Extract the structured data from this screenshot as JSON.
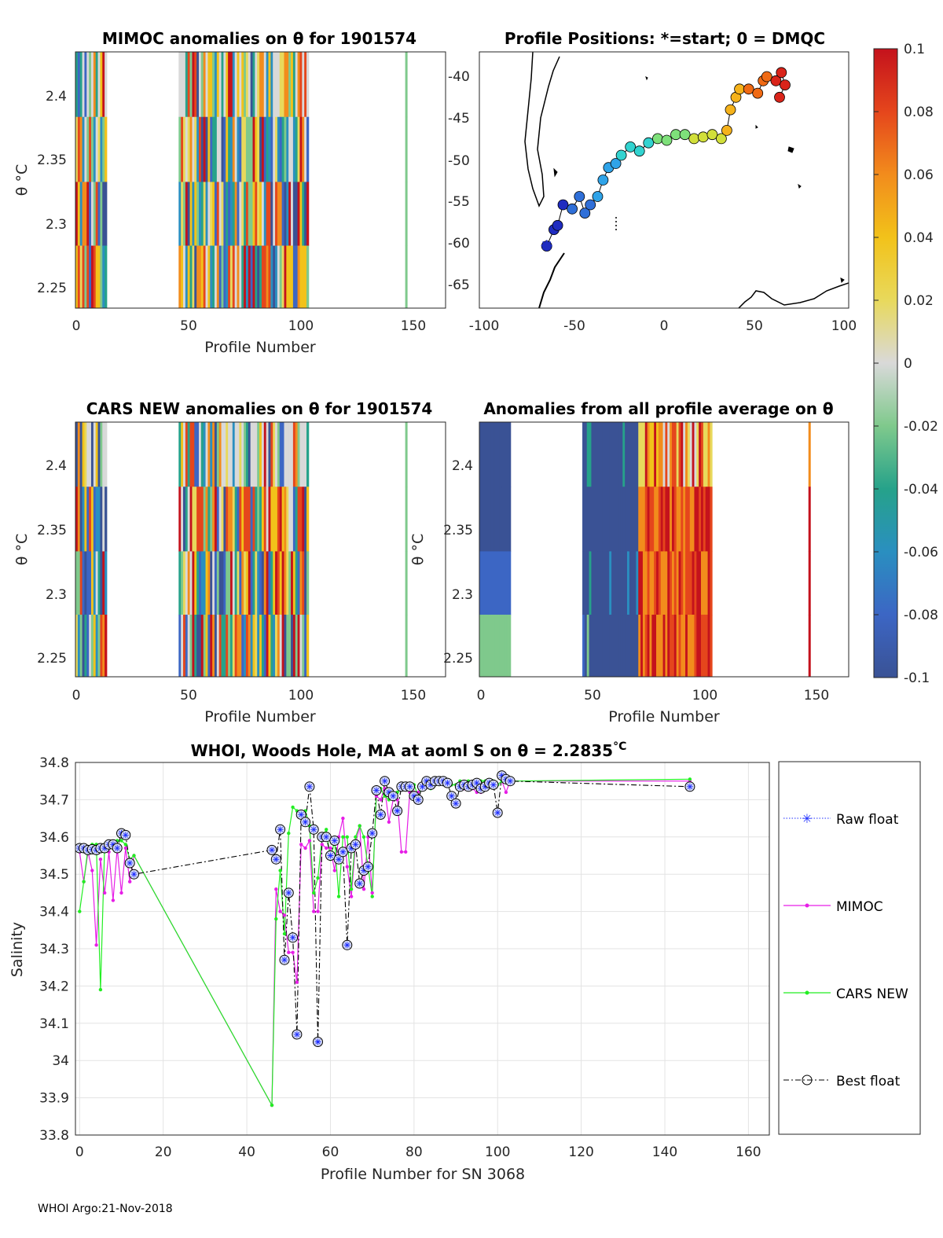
{
  "footer": "WHOI Argo:21-Nov-2018",
  "colors": {
    "map_dots": [
      "#1f2cc0",
      "#2f6fd8",
      "#2fa3e8",
      "#32d3d0",
      "#7ee07a",
      "#d2df3a",
      "#f5b21b",
      "#f06a14",
      "#d9241a"
    ],
    "raw": "#1f2fff",
    "mimoc": "#e61ee6",
    "cars": "#22ee22",
    "best": "#000000"
  },
  "colorbar": {
    "ticks": [
      "0.1",
      "0.08",
      "0.06",
      "0.04",
      "0.02",
      "0",
      "-0.02",
      "-0.04",
      "-0.06",
      "-0.08",
      "-0.1"
    ]
  },
  "chart_data": [
    {
      "type": "heatmap",
      "title": "MIMOC anomalies on θ  for 1901574",
      "xlabel": "Profile Number",
      "ylabel": "θ °C",
      "xlim": [
        0,
        165
      ],
      "ylim": [
        2.234,
        2.435
      ],
      "xticks": [
        0,
        50,
        100,
        150
      ],
      "yticks": [
        2.25,
        2.3,
        2.35,
        2.4
      ],
      "bands": [
        2.435,
        2.384,
        2.333,
        2.283,
        2.234
      ],
      "segments": [
        [
          0,
          14
        ],
        [
          46,
          104
        ],
        [
          147,
          148
        ]
      ]
    },
    {
      "type": "scatter",
      "title": "Profile Positions: *=start; 0 = DMQC",
      "xlim": [
        -103,
        100
      ],
      "ylim": [
        -68.5,
        -37.5
      ],
      "xticks": [
        -100,
        -50,
        0,
        50,
        100
      ],
      "yticks": [
        -40,
        -45,
        -50,
        -55,
        -60,
        -65
      ],
      "track": [
        [
          -66,
          -61
        ],
        [
          -62,
          -59
        ],
        [
          -60,
          -58.5
        ],
        [
          -57,
          -56
        ],
        [
          -52,
          -56.5
        ],
        [
          -48,
          -55
        ],
        [
          -45,
          -57
        ],
        [
          -42,
          -56
        ],
        [
          -38,
          -55
        ],
        [
          -35,
          -53
        ],
        [
          -32,
          -51.5
        ],
        [
          -28,
          -51
        ],
        [
          -25,
          -50
        ],
        [
          -20,
          -49
        ],
        [
          -15,
          -49.5
        ],
        [
          -10,
          -48.5
        ],
        [
          -5,
          -48
        ],
        [
          0,
          -48.2
        ],
        [
          5,
          -47.5
        ],
        [
          10,
          -47.5
        ],
        [
          15,
          -48
        ],
        [
          20,
          -47.8
        ],
        [
          25,
          -47.5
        ],
        [
          30,
          -48
        ],
        [
          33,
          -47
        ],
        [
          35,
          -44.5
        ],
        [
          38,
          -43
        ],
        [
          40,
          -42
        ],
        [
          45,
          -42
        ],
        [
          50,
          -42.5
        ],
        [
          53,
          -41
        ],
        [
          55,
          -40.5
        ],
        [
          60,
          -41
        ],
        [
          63,
          -40
        ],
        [
          65,
          -41.5
        ],
        [
          62,
          -43
        ]
      ]
    },
    {
      "type": "heatmap",
      "title": "CARS NEW anomalies on θ for 1901574",
      "xlabel": "Profile Number",
      "ylabel": "θ °C",
      "xlim": [
        0,
        165
      ],
      "ylim": [
        2.234,
        2.435
      ],
      "xticks": [
        0,
        50,
        100,
        150
      ],
      "yticks": [
        2.25,
        2.3,
        2.35,
        2.4
      ],
      "bands": [
        2.435,
        2.384,
        2.333,
        2.283,
        2.234
      ],
      "segments": [
        [
          0,
          14
        ],
        [
          46,
          104
        ],
        [
          147,
          148
        ]
      ]
    },
    {
      "type": "heatmap",
      "title": "Anomalies from all profile average on θ",
      "xlabel": "Profile Number",
      "ylabel": "θ °C",
      "xlim": [
        0,
        165
      ],
      "ylim": [
        2.234,
        2.435
      ],
      "xticks": [
        0,
        50,
        100,
        150
      ],
      "yticks": [
        2.25,
        2.3,
        2.35,
        2.4
      ],
      "bands": [
        2.435,
        2.384,
        2.333,
        2.283,
        2.234
      ],
      "segments": [
        [
          0,
          14
        ],
        [
          46,
          104
        ],
        [
          147,
          148
        ]
      ]
    },
    {
      "type": "line",
      "title": "WHOI, Woods Hole, MA at aoml S on θ = 2.2835",
      "title_unit": "°C",
      "xlabel": "Profile Number for SN 3068",
      "ylabel": "Salinity",
      "xlim": [
        -1,
        165
      ],
      "ylim": [
        33.8,
        34.8
      ],
      "xticks": [
        0,
        20,
        40,
        60,
        80,
        100,
        120,
        140,
        160
      ],
      "yticks": [
        33.8,
        33.9,
        34,
        34.1,
        34.2,
        34.3,
        34.4,
        34.5,
        34.6,
        34.7,
        34.8
      ],
      "x": [
        0,
        1,
        2,
        3,
        4,
        5,
        6,
        7,
        8,
        9,
        10,
        11,
        12,
        13,
        46,
        47,
        48,
        49,
        50,
        51,
        52,
        53,
        54,
        55,
        56,
        57,
        58,
        59,
        60,
        61,
        62,
        63,
        64,
        65,
        66,
        67,
        68,
        69,
        70,
        71,
        72,
        73,
        74,
        75,
        76,
        77,
        78,
        79,
        80,
        81,
        82,
        83,
        84,
        85,
        86,
        87,
        88,
        89,
        90,
        91,
        92,
        93,
        94,
        95,
        96,
        97,
        98,
        99,
        100,
        101,
        102,
        103,
        146
      ],
      "legend": [
        "Raw float",
        "MIMOC",
        "CARS NEW",
        "Best float"
      ],
      "series": [
        {
          "name": "Best float",
          "values": [
            34.57,
            34.57,
            34.565,
            34.567,
            34.565,
            34.57,
            34.57,
            34.58,
            34.58,
            34.57,
            34.61,
            34.605,
            34.53,
            34.5,
            34.565,
            34.54,
            34.62,
            34.27,
            34.45,
            34.33,
            34.07,
            34.66,
            34.64,
            34.735,
            34.62,
            34.05,
            34.6,
            34.6,
            34.55,
            34.59,
            34.54,
            34.56,
            34.31,
            34.57,
            34.58,
            34.475,
            34.51,
            34.52,
            34.61,
            34.725,
            34.66,
            34.75,
            34.72,
            34.71,
            34.67,
            34.735,
            34.735,
            34.735,
            34.71,
            34.7,
            34.735,
            34.75,
            34.74,
            34.75,
            34.75,
            34.75,
            34.745,
            34.71,
            34.69,
            34.735,
            34.74,
            34.735,
            34.74,
            34.745,
            34.73,
            34.735,
            34.745,
            34.74,
            34.665,
            34.765,
            34.755,
            34.75,
            34.735
          ]
        },
        {
          "name": "MIMOC",
          "values": [
            34.56,
            34.48,
            34.56,
            34.51,
            34.31,
            34.54,
            34.45,
            34.56,
            34.43,
            34.57,
            34.45,
            34.57,
            34.48,
            34.55,
            33.88,
            34.46,
            34.4,
            34.39,
            34.29,
            34.29,
            34.21,
            34.58,
            34.57,
            34.59,
            34.4,
            34.4,
            34.58,
            34.57,
            34.57,
            34.51,
            34.6,
            34.65,
            34.52,
            34.44,
            34.58,
            34.63,
            34.46,
            34.6,
            34.45,
            34.71,
            34.7,
            34.73,
            34.64,
            34.7,
            34.7,
            34.56,
            34.56,
            34.72,
            34.72,
            34.72,
            34.73,
            34.75,
            34.75,
            34.74,
            34.75,
            34.75,
            34.75,
            34.74,
            34.74,
            34.74,
            34.73,
            34.73,
            34.73,
            34.72,
            34.72,
            34.73,
            34.74,
            34.74,
            34.74,
            34.75,
            34.72,
            34.75,
            34.75
          ]
        },
        {
          "name": "CARS NEW",
          "values": [
            34.4,
            34.48,
            34.57,
            34.58,
            34.58,
            34.19,
            34.58,
            34.58,
            34.58,
            34.59,
            34.59,
            34.58,
            34.54,
            34.55,
            33.88,
            34.38,
            34.51,
            34.34,
            34.61,
            34.68,
            34.67,
            34.66,
            34.67,
            34.63,
            34.45,
            34.49,
            34.6,
            34.62,
            34.54,
            34.59,
            34.44,
            34.6,
            34.6,
            34.46,
            34.6,
            34.63,
            34.6,
            34.52,
            34.44,
            34.72,
            34.73,
            34.71,
            34.7,
            34.71,
            34.72,
            34.73,
            34.74,
            34.74,
            34.74,
            34.71,
            34.74,
            34.74,
            34.73,
            34.74,
            34.75,
            34.75,
            34.75,
            34.74,
            34.74,
            34.75,
            34.74,
            34.75,
            34.74,
            34.75,
            34.75,
            34.75,
            34.75,
            34.75,
            34.74,
            34.75,
            34.75,
            34.75,
            34.755
          ]
        }
      ]
    }
  ]
}
